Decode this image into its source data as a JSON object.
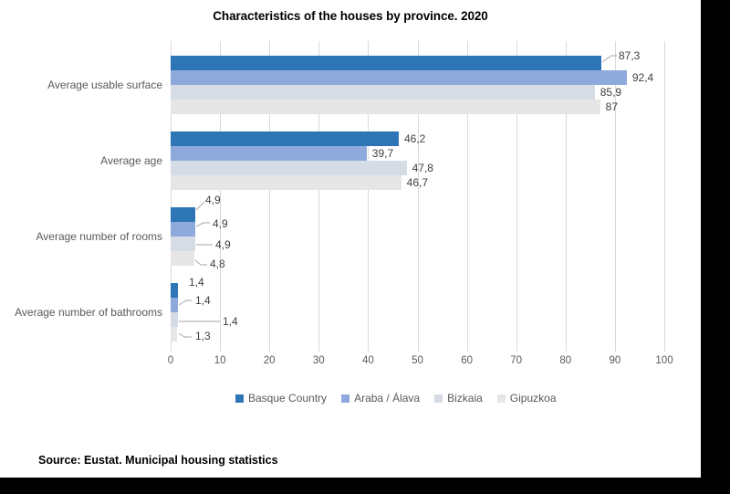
{
  "chart_data": {
    "type": "bar",
    "orientation": "horizontal",
    "title": "Characteristics of the houses by province. 2020",
    "source_note": "Source: Eustat. Municipal housing statistics",
    "categories": [
      "Average usable surface",
      "Average age",
      "Average number of rooms",
      "Average number of bathrooms"
    ],
    "series": [
      {
        "name": "Basque Country",
        "color": "#2E75B6",
        "values": [
          87.3,
          46.2,
          4.9,
          1.4
        ]
      },
      {
        "name": "Araba / Álava",
        "color": "#8EA9DB",
        "values": [
          92.4,
          39.7,
          4.9,
          1.4
        ]
      },
      {
        "name": "Bizkaia",
        "color": "#D6DCE5",
        "values": [
          85.9,
          47.8,
          4.9,
          1.4
        ]
      },
      {
        "name": "Gipuzkoa",
        "color": "#E7E6E6",
        "values": [
          87.0,
          46.7,
          4.8,
          1.3
        ]
      }
    ],
    "data_labels": [
      [
        "87,3",
        "92,4",
        "85,9",
        "87"
      ],
      [
        "46,2",
        "39,7",
        "47,8",
        "46,7"
      ],
      [
        "4,9",
        "4,9",
        "4,9",
        "4,8"
      ],
      [
        "1,4",
        "1,4",
        "1,4",
        "1,3"
      ]
    ],
    "x_ticks": [
      0,
      10,
      20,
      30,
      40,
      50,
      60,
      70,
      80,
      90,
      100
    ],
    "xlim": [
      0,
      100
    ],
    "grid": true,
    "legend_position": "bottom",
    "colors": {
      "gridline": "#D9D9D9",
      "axis_text": "#595959",
      "data_label_text": "#404040",
      "leader_line": "#A6A6A6",
      "title_text": "#000000",
      "canvas": "#FFFFFF",
      "surround": "#000000"
    }
  }
}
